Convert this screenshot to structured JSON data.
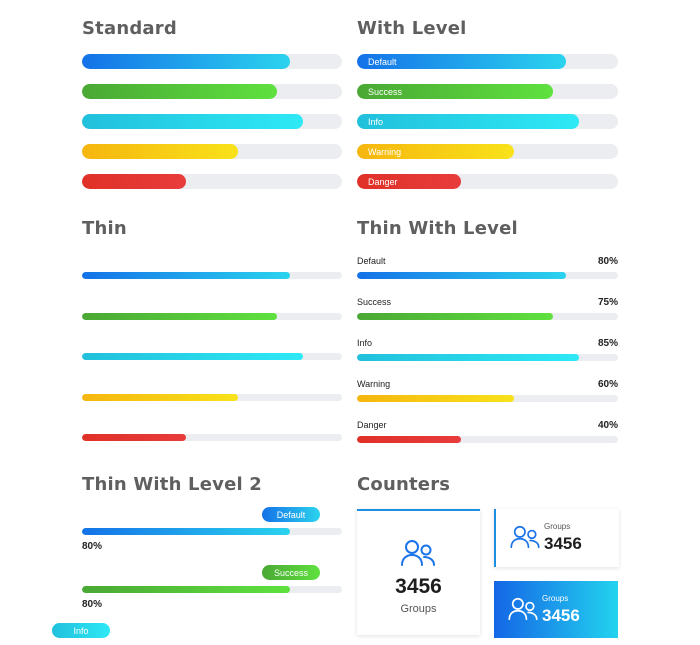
{
  "sections": {
    "standard": "Standard",
    "with_level": "With Level",
    "thin": "Thin",
    "thin_with_level": "Thin With Level",
    "thin_with_level_2": "Thin With Level 2",
    "counters": "Counters"
  },
  "bars": [
    {
      "variant": "primary",
      "label": "Default",
      "value": 80,
      "percent_text": "80%"
    },
    {
      "variant": "success",
      "label": "Success",
      "value": 75,
      "percent_text": "75%"
    },
    {
      "variant": "info",
      "label": "Info",
      "value": 85,
      "percent_text": "85%"
    },
    {
      "variant": "warning",
      "label": "Warning",
      "value": 60,
      "percent_text": "60%"
    },
    {
      "variant": "danger",
      "label": "Danger",
      "value": 40,
      "percent_text": "40%"
    }
  ],
  "thin_level_2": [
    {
      "variant": "primary",
      "label": "Default",
      "value": 80,
      "percent_text": "80%"
    },
    {
      "variant": "success",
      "label": "Success",
      "value": 80,
      "percent_text": "80%"
    },
    {
      "variant": "info",
      "label": "Info"
    }
  ],
  "counters": {
    "big": {
      "value": "3456",
      "label": "Groups",
      "icon": "users-icon"
    },
    "small": {
      "value": "3456",
      "label": "Groups",
      "icon": "users-icon"
    },
    "blue": {
      "value": "3456",
      "label": "Groups",
      "icon": "users-icon"
    }
  },
  "colors": {
    "primary": "#1472e8",
    "success": "#4aa834",
    "info": "#21c0dc",
    "warning": "#f6b60f",
    "danger": "#e03128",
    "track": "#ebedf0"
  }
}
